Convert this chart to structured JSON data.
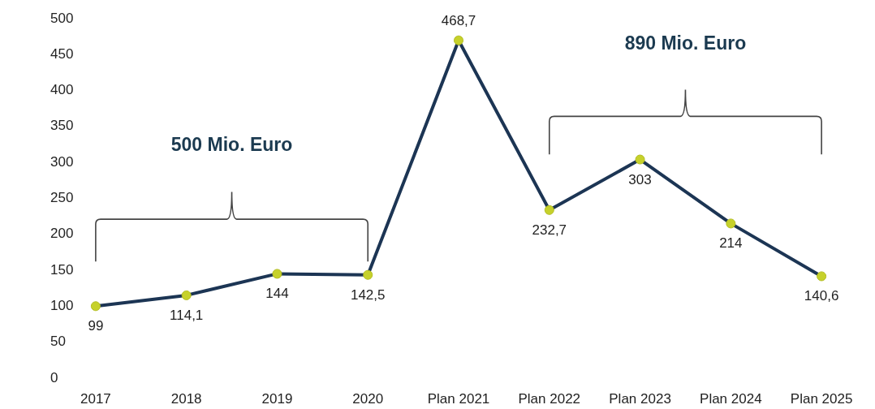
{
  "chart_data": {
    "type": "line",
    "categories": [
      "2017",
      "2018",
      "2019",
      "2020",
      "Plan 2021",
      "Plan 2022",
      "Plan 2023",
      "Plan 2024",
      "Plan 2025"
    ],
    "series": [
      {
        "color": "#1c3554",
        "values": [
          99,
          114.1,
          144,
          142.5,
          468.7,
          232.7,
          303,
          214,
          140.6
        ],
        "value_labels": [
          "99",
          "114,1",
          "144",
          "142,5",
          "468,7",
          "232,7",
          "303",
          "214",
          "140,6"
        ]
      }
    ],
    "ylim": [
      0,
      500
    ],
    "yticks": [
      0,
      50,
      100,
      150,
      200,
      250,
      300,
      350,
      400,
      450,
      500
    ],
    "grid": false,
    "marker": "circle",
    "line_style": "solid",
    "annotations": [
      "500 Mio. Euro",
      "890 Mio. Euro"
    ]
  }
}
